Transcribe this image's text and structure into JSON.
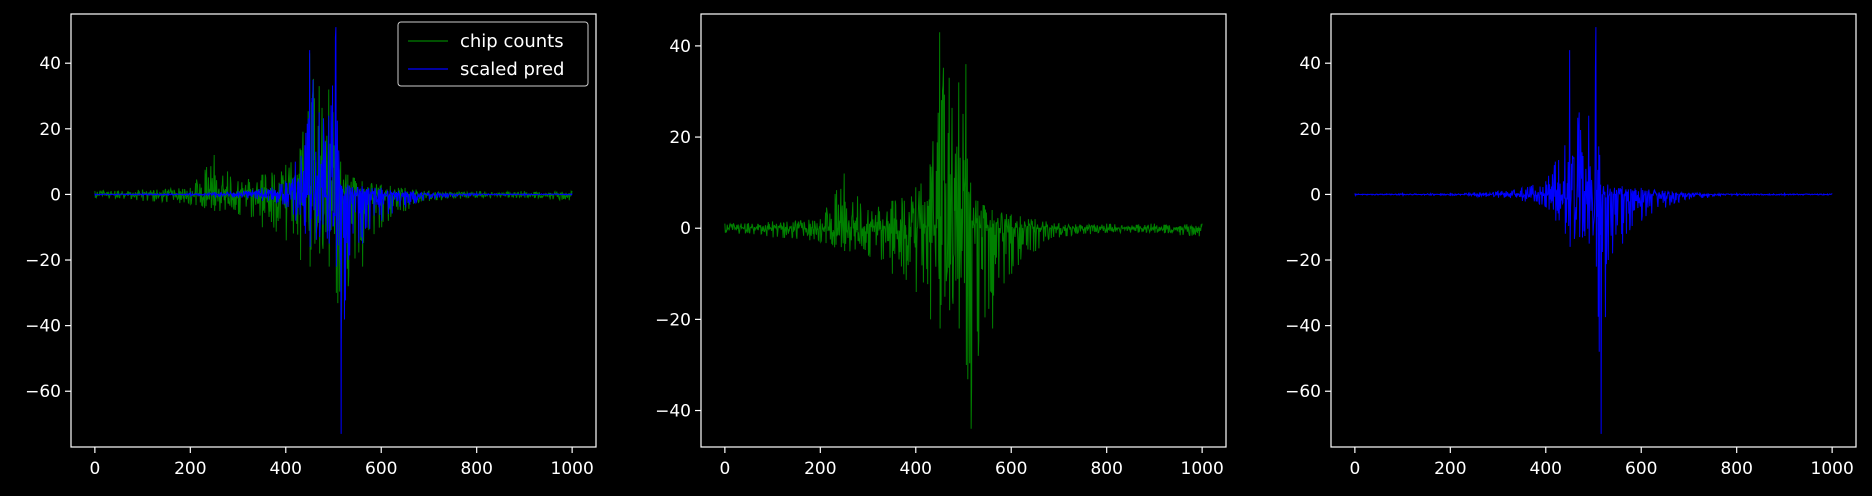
{
  "colors": {
    "background": "#000000",
    "axes": "#ffffff",
    "series_green": "#008000",
    "series_blue": "#0000ff"
  },
  "legend": {
    "items": [
      {
        "label": "chip counts",
        "color": "#008000"
      },
      {
        "label": "scaled pred",
        "color": "#0000ff"
      }
    ]
  },
  "chart_data": [
    {
      "type": "line",
      "xlim": [
        -50,
        1050
      ],
      "ylim": [
        -77,
        55
      ],
      "xticks": [
        0,
        200,
        400,
        600,
        800,
        1000
      ],
      "yticks": [
        -60,
        -40,
        -20,
        0,
        20,
        40
      ],
      "legend": "top-right",
      "grid": false,
      "series": [
        {
          "name": "chip counts",
          "color": "#008000",
          "x": [
            0,
            100,
            200,
            250,
            300,
            350,
            400,
            430,
            450,
            470,
            490,
            505,
            515,
            530,
            560,
            600,
            650,
            700,
            800,
            900,
            1000
          ],
          "y_upper": [
            1,
            1.5,
            2,
            12,
            4,
            6,
            9,
            14,
            43,
            33,
            32,
            36,
            10,
            6,
            4,
            3,
            2,
            1,
            1,
            1,
            1
          ],
          "y_lower": [
            -1,
            -2,
            -3,
            -5,
            -6,
            -10,
            -14,
            -20,
            -22,
            -18,
            -22,
            -30,
            -44,
            -28,
            -22,
            -10,
            -5,
            -2,
            -1,
            -1,
            -2
          ]
        },
        {
          "name": "scaled pred",
          "color": "#0000ff",
          "x": [
            0,
            100,
            200,
            300,
            350,
            400,
            420,
            440,
            450,
            470,
            490,
            505,
            515,
            530,
            560,
            600,
            650,
            700,
            800,
            900,
            1000
          ],
          "y_upper": [
            0.3,
            0.3,
            0.5,
            1,
            2,
            4,
            10,
            15,
            44,
            25,
            24,
            51,
            3,
            3,
            2.5,
            2,
            1,
            0.5,
            0.3,
            0.3,
            0.3
          ],
          "y_lower": [
            -0.3,
            -0.3,
            -0.5,
            -1,
            -2,
            -4,
            -8,
            -12,
            -16,
            -13,
            -15,
            -22,
            -73,
            -20,
            -15,
            -8,
            -4,
            -1.5,
            -0.5,
            -0.3,
            -0.3
          ]
        }
      ]
    },
    {
      "type": "line",
      "xlim": [
        -50,
        1050
      ],
      "ylim": [
        -48,
        47
      ],
      "xticks": [
        0,
        200,
        400,
        600,
        800,
        1000
      ],
      "yticks": [
        -40,
        -20,
        0,
        20,
        40
      ],
      "grid": false,
      "series": [
        {
          "color": "#008000",
          "x": [
            0,
            100,
            200,
            250,
            300,
            350,
            400,
            430,
            450,
            470,
            490,
            505,
            515,
            530,
            560,
            600,
            650,
            700,
            800,
            900,
            1000
          ],
          "y_upper": [
            1,
            1.5,
            2,
            12,
            4,
            6,
            9,
            14,
            43,
            33,
            32,
            36,
            10,
            6,
            4,
            3,
            2,
            1,
            1,
            1,
            1
          ],
          "y_lower": [
            -1,
            -2,
            -3,
            -5,
            -6,
            -10,
            -14,
            -20,
            -22,
            -18,
            -22,
            -30,
            -44,
            -28,
            -22,
            -10,
            -5,
            -2,
            -1,
            -1,
            -2
          ]
        }
      ]
    },
    {
      "type": "line",
      "xlim": [
        -50,
        1050
      ],
      "ylim": [
        -77,
        55
      ],
      "xticks": [
        0,
        200,
        400,
        600,
        800,
        1000
      ],
      "yticks": [
        -60,
        -40,
        -20,
        0,
        20,
        40
      ],
      "grid": false,
      "series": [
        {
          "color": "#0000ff",
          "x": [
            0,
            100,
            200,
            300,
            350,
            400,
            420,
            440,
            450,
            470,
            490,
            505,
            515,
            530,
            560,
            600,
            650,
            700,
            800,
            900,
            1000
          ],
          "y_upper": [
            0.3,
            0.3,
            0.5,
            1,
            2,
            4,
            10,
            15,
            44,
            25,
            24,
            51,
            3,
            3,
            2.5,
            2,
            1,
            0.5,
            0.3,
            0.3,
            0.3
          ],
          "y_lower": [
            -0.3,
            -0.3,
            -0.5,
            -1,
            -2,
            -4,
            -8,
            -12,
            -16,
            -13,
            -15,
            -22,
            -73,
            -20,
            -15,
            -8,
            -4,
            -1.5,
            -0.5,
            -0.3,
            -0.3
          ]
        }
      ]
    }
  ]
}
